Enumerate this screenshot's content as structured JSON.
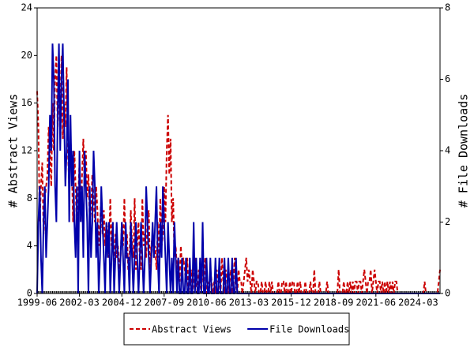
{
  "chart_data": {
    "type": "line",
    "y_label": "# Abstract Views",
    "y2_label": "# File Downloads",
    "categories": [
      "1999-06",
      "1999-07",
      "1999-08",
      "1999-09",
      "1999-10",
      "1999-11",
      "1999-12",
      "2000-01",
      "2000-02",
      "2000-03",
      "2000-04",
      "2000-05",
      "2000-06",
      "2000-07",
      "2000-08",
      "2000-09",
      "2000-10",
      "2000-11",
      "2000-12",
      "2001-01",
      "2001-02",
      "2001-03",
      "2001-04",
      "2001-05",
      "2001-06",
      "2001-07",
      "2001-08",
      "2001-09",
      "2001-10",
      "2001-11",
      "2001-12",
      "2002-01",
      "2002-02",
      "2002-03",
      "2002-04",
      "2002-05",
      "2002-06",
      "2002-07",
      "2002-08",
      "2002-09",
      "2002-10",
      "2002-11",
      "2002-12",
      "2003-01",
      "2003-02",
      "2003-03",
      "2003-04",
      "2003-05",
      "2003-06",
      "2003-07",
      "2003-08",
      "2003-09",
      "2003-10",
      "2003-11",
      "2003-12",
      "2004-01",
      "2004-02",
      "2004-03",
      "2004-04",
      "2004-05",
      "2004-06",
      "2004-07",
      "2004-08",
      "2004-09",
      "2004-10",
      "2004-11",
      "2004-12",
      "2005-01",
      "2005-02",
      "2005-03",
      "2005-04",
      "2005-05",
      "2005-06",
      "2005-07",
      "2005-08",
      "2005-09",
      "2005-10",
      "2005-11",
      "2005-12",
      "2006-01",
      "2006-02",
      "2006-03",
      "2006-04",
      "2006-05",
      "2006-06",
      "2006-07",
      "2006-08",
      "2006-09",
      "2006-10",
      "2006-11",
      "2006-12",
      "2007-01",
      "2007-02",
      "2007-03",
      "2007-04",
      "2007-05",
      "2007-06",
      "2007-07",
      "2007-08",
      "2007-09",
      "2007-10",
      "2007-11",
      "2007-12",
      "2008-01",
      "2008-02",
      "2008-03",
      "2008-04",
      "2008-05",
      "2008-06",
      "2008-07",
      "2008-08",
      "2008-09",
      "2008-10",
      "2008-11",
      "2008-12",
      "2009-01",
      "2009-02",
      "2009-03",
      "2009-04",
      "2009-05",
      "2009-06",
      "2009-07",
      "2009-08",
      "2009-09",
      "2009-10",
      "2009-11",
      "2009-12",
      "2010-01",
      "2010-02",
      "2010-03",
      "2010-04",
      "2010-05",
      "2010-06",
      "2010-07",
      "2010-08",
      "2010-09",
      "2010-10",
      "2010-11",
      "2010-12",
      "2011-01",
      "2011-02",
      "2011-03",
      "2011-04",
      "2011-05",
      "2011-06",
      "2011-07",
      "2011-08",
      "2011-09",
      "2011-10",
      "2011-11",
      "2011-12",
      "2012-01",
      "2012-02",
      "2012-03",
      "2012-04",
      "2012-05",
      "2012-06",
      "2012-07",
      "2012-08",
      "2012-09",
      "2012-10",
      "2012-11",
      "2012-12",
      "2013-01",
      "2013-02",
      "2013-03",
      "2013-04",
      "2013-05",
      "2013-06",
      "2013-07",
      "2013-08",
      "2013-09",
      "2013-10",
      "2013-11",
      "2013-12",
      "2014-01",
      "2014-02",
      "2014-03",
      "2014-04",
      "2014-05",
      "2014-06",
      "2014-07",
      "2014-08",
      "2014-09",
      "2014-10",
      "2014-11",
      "2014-12",
      "2015-01",
      "2015-02",
      "2015-03",
      "2015-04",
      "2015-05",
      "2015-06",
      "2015-07",
      "2015-08",
      "2015-09",
      "2015-10",
      "2015-11",
      "2015-12",
      "2016-01",
      "2016-02",
      "2016-03",
      "2016-04",
      "2016-05",
      "2016-06",
      "2016-07",
      "2016-08",
      "2016-09",
      "2016-10",
      "2016-11",
      "2016-12",
      "2017-01",
      "2017-02",
      "2017-03",
      "2017-04",
      "2017-05",
      "2017-06",
      "2017-07",
      "2017-08",
      "2017-09",
      "2017-10",
      "2017-11",
      "2017-12",
      "2018-01",
      "2018-02",
      "2018-03",
      "2018-04",
      "2018-05",
      "2018-06",
      "2018-07",
      "2018-08",
      "2018-09",
      "2018-10",
      "2018-11",
      "2018-12",
      "2019-01",
      "2019-02",
      "2019-03",
      "2019-04",
      "2019-05",
      "2019-06",
      "2019-07",
      "2019-08",
      "2019-09",
      "2019-10",
      "2019-11",
      "2019-12",
      "2020-01",
      "2020-02",
      "2020-03",
      "2020-04",
      "2020-05",
      "2020-06",
      "2020-07",
      "2020-08",
      "2020-09",
      "2020-10",
      "2020-11",
      "2020-12",
      "2021-01",
      "2021-02",
      "2021-03",
      "2021-04",
      "2021-05",
      "2021-06",
      "2021-07",
      "2021-08",
      "2021-09",
      "2021-10",
      "2021-11",
      "2021-12",
      "2022-01",
      "2022-02",
      "2022-03",
      "2022-04",
      "2022-05",
      "2022-06",
      "2022-07",
      "2022-08",
      "2022-09",
      "2022-10",
      "2022-11",
      "2022-12",
      "2023-01",
      "2023-02",
      "2023-03",
      "2023-04",
      "2023-05",
      "2023-06",
      "2023-07",
      "2023-08",
      "2023-09",
      "2023-10",
      "2023-11",
      "2023-12",
      "2024-01",
      "2024-02",
      "2024-03",
      "2024-04",
      "2024-05",
      "2024-06",
      "2024-07",
      "2024-08",
      "2024-09",
      "2024-10",
      "2024-11",
      "2024-12",
      "2025-01",
      "2025-02",
      "2025-03",
      "2025-04",
      "2025-05",
      "2025-06",
      "2025-07",
      "2025-08"
    ],
    "xticks": [
      "1999-06",
      "2002-03",
      "2004-12",
      "2007-09",
      "2010-06",
      "2013-03",
      "2015-12",
      "2018-09",
      "2021-06",
      "2024-03"
    ],
    "ylim": [
      0,
      24
    ],
    "yticks": [
      0,
      4,
      8,
      12,
      16,
      20,
      24
    ],
    "y2lim": [
      0,
      8
    ],
    "y2ticks": [
      0,
      2,
      4,
      6,
      8
    ],
    "series": [
      {
        "name": "Abstract Views",
        "color": "#cc0000",
        "dash": true,
        "values": [
          17,
          14,
          6,
          9,
          11,
          5,
          8,
          9,
          10,
          14,
          12,
          9,
          16,
          12,
          18,
          20,
          14,
          17,
          15,
          20,
          13,
          16,
          14,
          19,
          12,
          9,
          13,
          11,
          6,
          12,
          9,
          5,
          8,
          11,
          6,
          10,
          13,
          9,
          12,
          8,
          10,
          6,
          7,
          10,
          8,
          6,
          9,
          7,
          4,
          6,
          8,
          5,
          7,
          4,
          6,
          5,
          3,
          8,
          4,
          6,
          2,
          5,
          3,
          4,
          2,
          3,
          6,
          4,
          8,
          3,
          5,
          2,
          3,
          7,
          4,
          3,
          8,
          2,
          4,
          6,
          3,
          2,
          8,
          4,
          5,
          3,
          6,
          7,
          2,
          4,
          5,
          3,
          4,
          2,
          6,
          3,
          8,
          4,
          5,
          9,
          6,
          12,
          15,
          10,
          13,
          6,
          8,
          3,
          4,
          2,
          3,
          1,
          4,
          2,
          3,
          2,
          1,
          3,
          0,
          1,
          2,
          0,
          1,
          3,
          1,
          0,
          2,
          1,
          0,
          2,
          1,
          3,
          0,
          1,
          0,
          2,
          1,
          0,
          1,
          0,
          2,
          1,
          1,
          0,
          3,
          1,
          0,
          2,
          1,
          0,
          1,
          2,
          0,
          1,
          3,
          1,
          0,
          2,
          1,
          1,
          0,
          1,
          2,
          3,
          1,
          2,
          1,
          0,
          2,
          1,
          0,
          1,
          1,
          0,
          0,
          1,
          0,
          0,
          1,
          0,
          0,
          1,
          0,
          1,
          0,
          0,
          0,
          0,
          1,
          0,
          0,
          1,
          1,
          0,
          1,
          0,
          0,
          1,
          0,
          1,
          1,
          0,
          0,
          1,
          0,
          1,
          0,
          0,
          0,
          1,
          0,
          0,
          0,
          1,
          0,
          0,
          2,
          0,
          0,
          0,
          1,
          0,
          0,
          0,
          0,
          0,
          1,
          0,
          0,
          0,
          0,
          0,
          0,
          0,
          0,
          2,
          0,
          0,
          0,
          1,
          0,
          0,
          1,
          0,
          1,
          0,
          1,
          0,
          1,
          1,
          0,
          1,
          1,
          0,
          1,
          2,
          1,
          0,
          1,
          1,
          2,
          0,
          1,
          2,
          1,
          0,
          1,
          1,
          0,
          1,
          0,
          1,
          0,
          1,
          0,
          1,
          0,
          1,
          0,
          1,
          1,
          0,
          0,
          0,
          0,
          0,
          0,
          0,
          0,
          0,
          0,
          0,
          0,
          0,
          0,
          0,
          0,
          0,
          0,
          0,
          0,
          0,
          1,
          0,
          0,
          0,
          0,
          0,
          0,
          0,
          0,
          0,
          0,
          1,
          2
        ]
      },
      {
        "name": "File Downloads",
        "color": "#0000aa",
        "axis": "y2",
        "values": [
          0,
          2,
          3,
          1,
          0,
          2,
          3,
          1,
          2,
          3,
          5,
          4,
          7,
          6,
          3,
          2,
          5,
          7,
          4,
          6,
          7,
          5,
          3,
          4,
          6,
          2,
          5,
          3,
          4,
          2,
          1,
          3,
          0,
          4,
          2,
          3,
          1,
          4,
          3,
          2,
          0,
          3,
          1,
          2,
          4,
          3,
          1,
          2,
          0,
          1,
          3,
          2,
          1,
          0,
          2,
          1,
          2,
          0,
          1,
          2,
          0,
          1,
          2,
          1,
          0,
          1,
          2,
          1,
          0,
          2,
          1,
          1,
          0,
          2,
          1,
          0,
          1,
          2,
          1,
          0,
          1,
          2,
          1,
          0,
          1,
          3,
          2,
          1,
          0,
          1,
          2,
          1,
          2,
          3,
          1,
          0,
          2,
          1,
          3,
          2,
          1,
          0,
          2,
          1,
          0,
          1,
          0,
          2,
          1,
          0,
          1,
          0,
          0,
          1,
          0,
          0,
          1,
          0,
          0,
          1,
          0,
          0,
          2,
          0,
          1,
          0,
          0,
          1,
          0,
          2,
          0,
          0,
          1,
          0,
          0,
          1,
          0,
          0,
          0,
          1,
          0,
          0,
          1,
          0,
          0,
          0,
          1,
          0,
          0,
          1,
          0,
          0,
          1,
          0,
          0,
          1,
          0,
          0,
          0,
          0,
          0,
          0,
          0,
          0,
          0,
          0,
          0,
          0,
          0,
          0,
          0,
          0,
          0,
          0,
          0,
          0,
          0,
          0,
          0,
          0,
          0,
          0,
          0,
          0,
          0,
          0,
          0,
          0,
          0,
          0,
          0,
          0,
          0,
          0,
          0,
          0,
          0,
          0,
          0,
          0,
          0,
          0,
          0,
          0,
          0,
          0,
          0,
          0,
          0,
          0,
          0,
          0,
          0,
          0,
          0,
          0,
          0,
          0,
          0,
          0,
          0,
          0,
          0,
          0,
          0,
          0,
          0,
          0,
          0,
          0,
          0,
          0,
          0,
          0,
          0,
          0,
          0,
          0,
          0,
          0,
          0,
          0,
          0,
          0,
          0,
          0,
          0,
          0,
          0,
          0,
          0,
          0,
          0,
          0,
          0,
          0,
          0,
          0,
          0,
          0,
          0,
          0,
          0,
          0,
          0,
          0,
          0,
          0,
          0,
          0,
          0,
          0,
          0,
          0,
          0,
          0,
          0,
          0,
          0,
          0,
          0,
          0,
          0,
          0,
          0,
          0,
          0,
          0,
          0,
          0,
          0,
          0,
          0,
          0,
          0,
          0,
          0,
          0,
          0,
          0,
          0,
          0,
          0,
          0,
          0,
          0,
          0,
          0,
          0,
          0,
          0,
          0,
          0,
          0,
          0
        ]
      }
    ],
    "legend": "bottom"
  }
}
